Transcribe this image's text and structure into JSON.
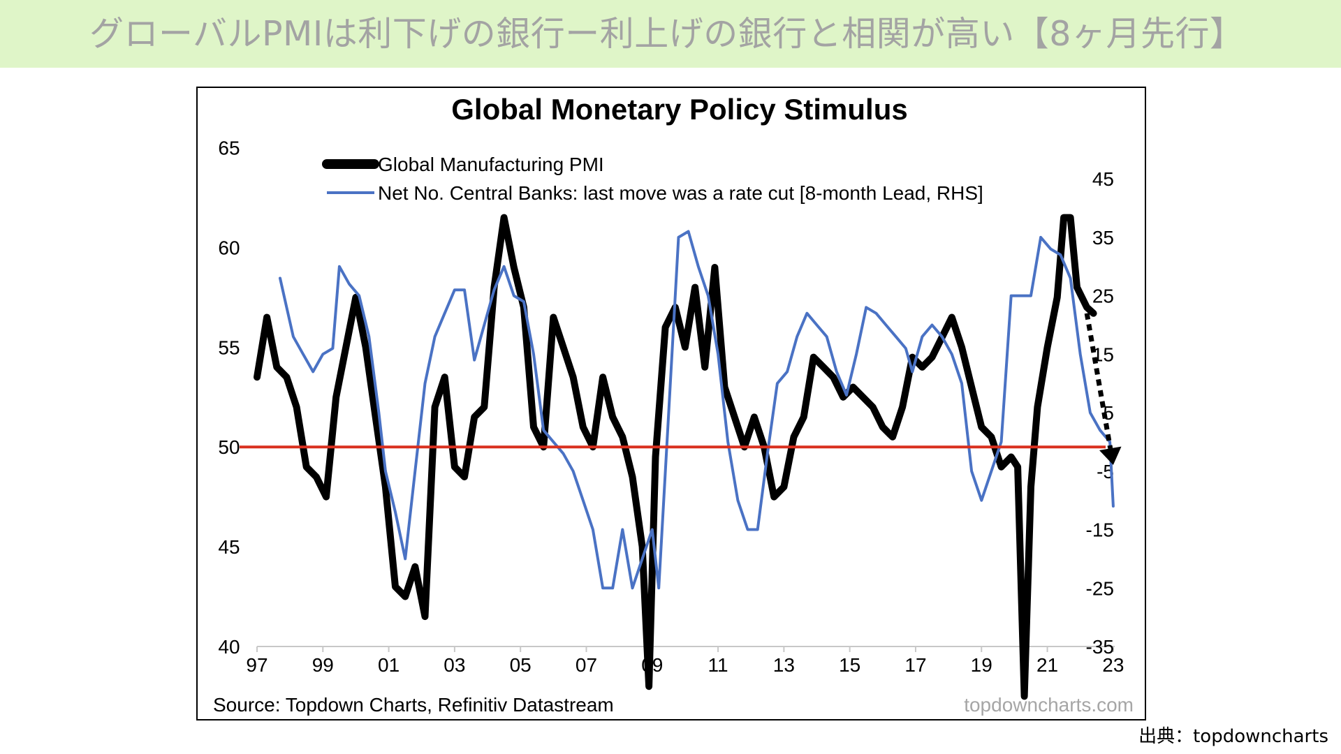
{
  "page": {
    "title": "グローバルPMIは利下げの銀行ー利上げの銀行と相関が高い【8ヶ月先行】",
    "credit": "出典：topdowncharts"
  },
  "colors": {
    "banner": "#dff5c8",
    "title_text": "#a3a3a3",
    "pmi": "#000000",
    "banks": "#4a72c4",
    "reference_line": "#d9301f",
    "arrow": "#000000"
  },
  "chart_data": {
    "type": "line",
    "title": "Global Monetary Policy Stimulus",
    "source": "Source: Topdown Charts, Refinitiv Datastream",
    "watermark": "topdowncharts.com",
    "x_ticks": [
      "97",
      "99",
      "01",
      "03",
      "05",
      "07",
      "09",
      "11",
      "13",
      "15",
      "17",
      "19",
      "21",
      "23"
    ],
    "x_range": [
      1997,
      2023.3
    ],
    "y_left": {
      "range": [
        40,
        66
      ],
      "ticks": [
        "65",
        "60",
        "55",
        "50",
        "45",
        "40"
      ]
    },
    "y_right": {
      "range": [
        -35,
        48
      ],
      "ticks": [
        "45",
        "35",
        "25",
        "15",
        "5",
        "-5",
        "-15",
        "-25",
        "-35"
      ]
    },
    "reference_line": {
      "axis": "left",
      "value": 50
    },
    "legend": {
      "position": "top"
    },
    "annotation": {
      "type": "dotted-arrow",
      "from": [
        2022.2,
        56.7
      ],
      "to": [
        2023.0,
        49.1
      ],
      "axis": "left"
    },
    "series": [
      {
        "name": "Global Manufacturing PMI",
        "axis": "left",
        "x": [
          1997.0,
          1997.3,
          1997.6,
          1997.9,
          1998.2,
          1998.5,
          1998.8,
          1999.1,
          1999.4,
          1999.7,
          2000.0,
          2000.3,
          2000.6,
          2000.9,
          2001.2,
          2001.5,
          2001.8,
          2002.1,
          2002.4,
          2002.7,
          2003.0,
          2003.3,
          2003.6,
          2003.9,
          2004.2,
          2004.5,
          2004.8,
          2005.1,
          2005.4,
          2005.7,
          2006.0,
          2006.3,
          2006.6,
          2006.9,
          2007.2,
          2007.5,
          2007.8,
          2008.1,
          2008.4,
          2008.7,
          2008.9,
          2009.1,
          2009.4,
          2009.7,
          2010.0,
          2010.3,
          2010.6,
          2010.9,
          2011.2,
          2011.5,
          2011.8,
          2012.1,
          2012.4,
          2012.7,
          2013.0,
          2013.3,
          2013.6,
          2013.9,
          2014.2,
          2014.5,
          2014.8,
          2015.1,
          2015.4,
          2015.7,
          2016.0,
          2016.3,
          2016.6,
          2016.9,
          2017.2,
          2017.5,
          2017.8,
          2018.1,
          2018.4,
          2018.7,
          2019.0,
          2019.3,
          2019.6,
          2019.9,
          2020.1,
          2020.3,
          2020.5,
          2020.7,
          2021.0,
          2021.3,
          2021.5,
          2021.7,
          2021.9,
          2022.2,
          2022.4
        ],
        "y": [
          53.5,
          56.5,
          54,
          53.5,
          52,
          49,
          48.5,
          47.5,
          52.5,
          55,
          57.5,
          55,
          51.5,
          48,
          43,
          42.5,
          44,
          41.5,
          52,
          53.5,
          49,
          48.5,
          51.5,
          52,
          58,
          61.5,
          59,
          57,
          51,
          50,
          56.5,
          55,
          53.5,
          51,
          50,
          53.5,
          51.5,
          50.5,
          48.5,
          45,
          38,
          49.5,
          56,
          57,
          55,
          58,
          54,
          59,
          53,
          51.5,
          50,
          51.5,
          50,
          47.5,
          48,
          50.5,
          51.5,
          54.5,
          54,
          53.5,
          52.5,
          53,
          52.5,
          52,
          51,
          50.5,
          52,
          54.5,
          54,
          54.5,
          55.5,
          56.5,
          55,
          53,
          51,
          50.5,
          49,
          49.5,
          49,
          37.5,
          48,
          52,
          55,
          57.5,
          61.5,
          61.5,
          58,
          57,
          56.7
        ]
      },
      {
        "name": "Net No. Central Banks: last move was a rate cut  [8-month Lead, RHS]",
        "axis": "right",
        "x": [
          1997.7,
          1997.9,
          1998.1,
          1998.4,
          1998.7,
          1999.0,
          1999.3,
          1999.5,
          1999.8,
          2000.1,
          2000.4,
          2000.7,
          2000.9,
          2001.2,
          2001.5,
          2001.8,
          2002.1,
          2002.4,
          2002.7,
          2003.0,
          2003.3,
          2003.6,
          2003.9,
          2004.2,
          2004.5,
          2004.8,
          2005.1,
          2005.4,
          2005.7,
          2006.0,
          2006.3,
          2006.6,
          2006.9,
          2007.2,
          2007.5,
          2007.8,
          2008.1,
          2008.4,
          2008.7,
          2009.0,
          2009.2,
          2009.5,
          2009.8,
          2010.1,
          2010.4,
          2010.7,
          2011.0,
          2011.3,
          2011.6,
          2011.9,
          2012.2,
          2012.5,
          2012.8,
          2013.1,
          2013.4,
          2013.7,
          2014.0,
          2014.3,
          2014.6,
          2014.9,
          2015.2,
          2015.5,
          2015.8,
          2016.1,
          2016.4,
          2016.7,
          2016.9,
          2017.2,
          2017.5,
          2017.8,
          2018.1,
          2018.4,
          2018.7,
          2019.0,
          2019.3,
          2019.6,
          2019.9,
          2020.2,
          2020.5,
          2020.8,
          2021.1,
          2021.4,
          2021.7,
          2022.0,
          2022.3,
          2022.6,
          2022.9,
          2023.0
        ],
        "y": [
          28,
          23,
          18,
          15,
          12,
          15,
          16,
          30,
          27,
          25,
          18,
          5,
          -5,
          -12,
          -20,
          -5,
          10,
          18,
          22,
          26,
          26,
          14,
          20,
          26,
          30,
          25,
          24,
          15,
          2,
          0,
          -2,
          -5,
          -10,
          -15,
          -25,
          -25,
          -15,
          -25,
          -20,
          -15,
          -25,
          5,
          35,
          36,
          30,
          25,
          15,
          0,
          -10,
          -15,
          -15,
          -2,
          10,
          12,
          18,
          22,
          20,
          18,
          12,
          8,
          15,
          23,
          22,
          20,
          18,
          16,
          12,
          18,
          20,
          18,
          15,
          10,
          -5,
          -10,
          -5,
          0,
          25,
          25,
          25,
          35,
          33,
          32,
          28,
          15,
          5,
          2,
          0,
          -11
        ]
      }
    ]
  }
}
